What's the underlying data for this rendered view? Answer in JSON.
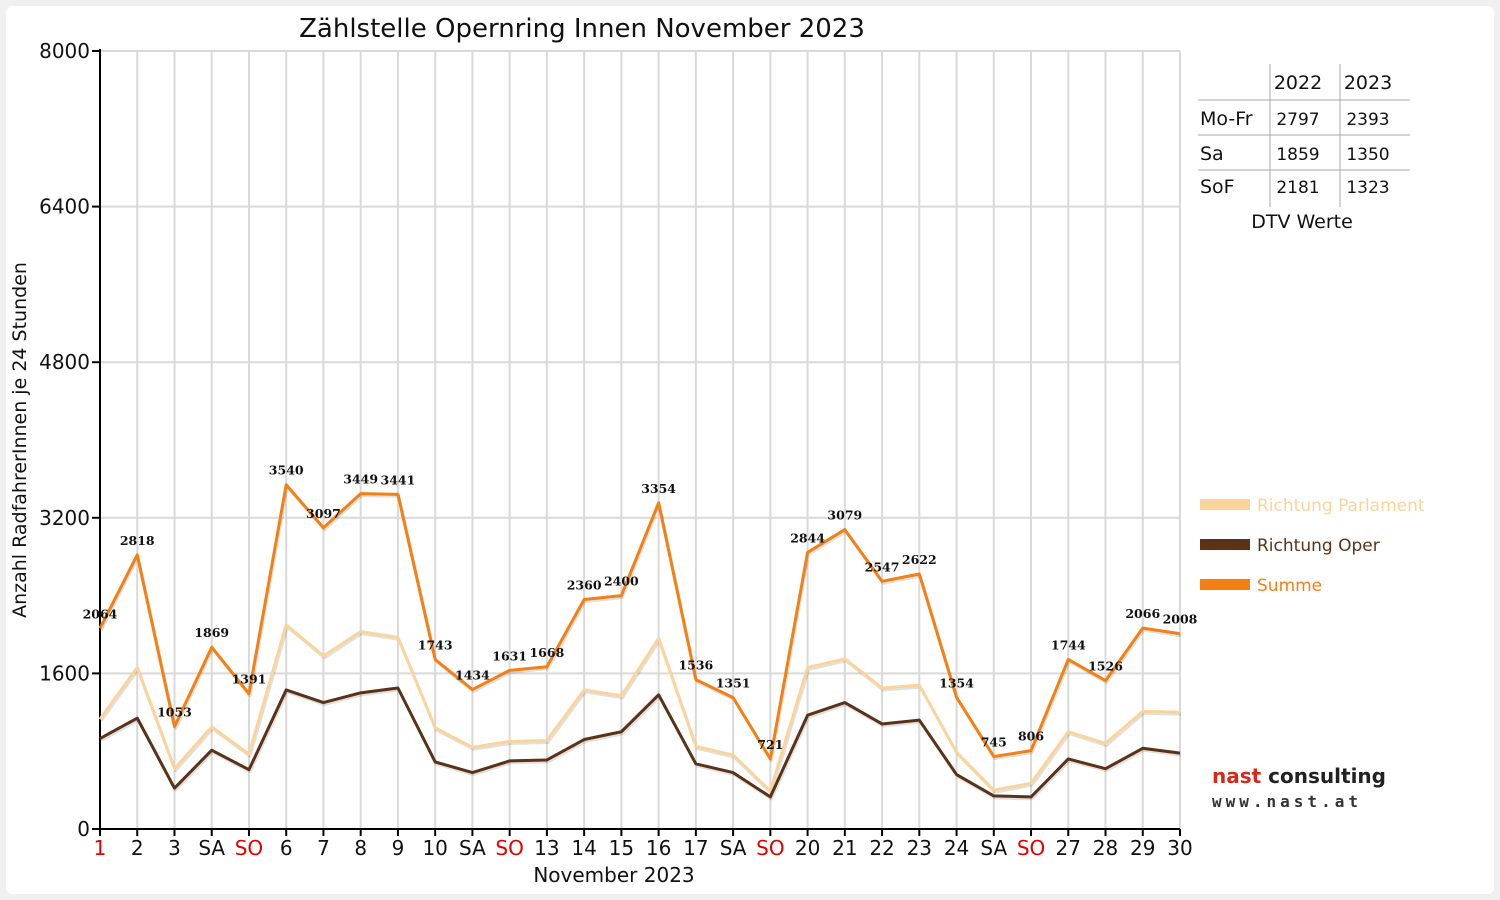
{
  "chart_data": {
    "type": "line",
    "title": "Zählstelle Opernring Innen November 2023",
    "ylabel": "Anzahl RadfahrerInnen je 24 Stunden",
    "xlabel": "November 2023",
    "ylim": [
      0,
      8000
    ],
    "yticks": [
      "0",
      "1600",
      "3200",
      "4800",
      "6400",
      "8000"
    ],
    "categories": [
      "1",
      "2",
      "3",
      "SA",
      "SO",
      "6",
      "7",
      "8",
      "9",
      "10",
      "SA",
      "SO",
      "13",
      "14",
      "15",
      "16",
      "17",
      "SA",
      "SO",
      "20",
      "21",
      "22",
      "23",
      "24",
      "SA",
      "SO",
      "27",
      "28",
      "29",
      "30"
    ],
    "red_categories": [
      0,
      4,
      11,
      18,
      25
    ],
    "grid": true,
    "legend_position": "right",
    "series": [
      {
        "name": "Richtung Parlament",
        "color": "#fbd49c",
        "values": [
          1130,
          1660,
          620,
          1050,
          770,
          2100,
          1780,
          2030,
          1970,
          1040,
          840,
          900,
          910,
          1430,
          1370,
          1960,
          850,
          760,
          390,
          1660,
          1750,
          1450,
          1480,
          790,
          400,
          470,
          1000,
          880,
          1210,
          1200
        ]
      },
      {
        "name": "Richtung Oper",
        "color": "#5a3218",
        "values": [
          930,
          1140,
          420,
          810,
          610,
          1430,
          1300,
          1400,
          1450,
          690,
          580,
          700,
          710,
          920,
          1000,
          1380,
          670,
          580,
          330,
          1170,
          1300,
          1080,
          1120,
          560,
          340,
          330,
          720,
          620,
          830,
          780
        ]
      },
      {
        "name": "Summe",
        "color": "#f47f13",
        "values": [
          2064,
          2818,
          1053,
          1869,
          1391,
          3540,
          3097,
          3449,
          3441,
          1743,
          1434,
          1631,
          1668,
          2360,
          2400,
          3354,
          1536,
          1351,
          721,
          2844,
          3079,
          2547,
          2622,
          1354,
          745,
          806,
          1744,
          1526,
          2066,
          2008
        ]
      }
    ],
    "data_labels": [
      "2064",
      "2818",
      "1053",
      "1869",
      "1391",
      "3540",
      "3097",
      "3449",
      "3441",
      "1743",
      "1434",
      "1631",
      "1668",
      "2360",
      "2400",
      "3354",
      "1536",
      "1351",
      "721",
      "2844",
      "3079",
      "2547",
      "2622",
      "1354",
      "745",
      "806",
      "1744",
      "1526",
      "2066",
      "2008"
    ]
  },
  "dtv_table": {
    "headers": [
      "2022",
      "2023"
    ],
    "rows": [
      {
        "label": "Mo-Fr",
        "v2022": "2797",
        "v2023": "2393"
      },
      {
        "label": "Sa",
        "v2022": "1859",
        "v2023": "1350"
      },
      {
        "label": "SoF",
        "v2022": "2181",
        "v2023": "1323"
      }
    ],
    "caption": "DTV Werte"
  },
  "logo": {
    "name_part1": "nast",
    "name_part2": "consulting",
    "url": "www.nast.at"
  }
}
